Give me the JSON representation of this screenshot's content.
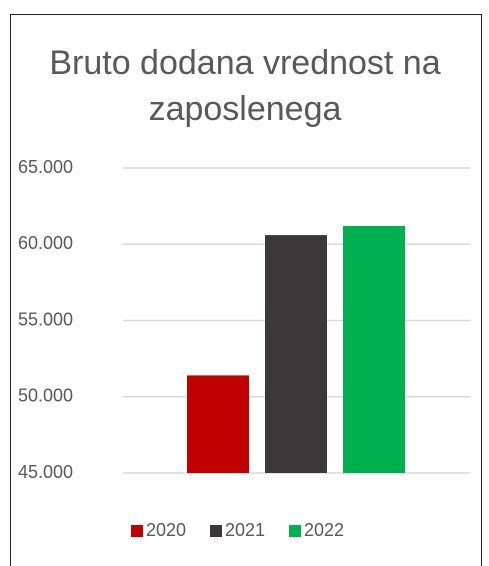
{
  "chart_data": {
    "type": "bar",
    "title": "Bruto dodana vrednost na zaposlenega",
    "series": [
      {
        "name": "2020",
        "color": "#c00000",
        "values": [
          51400
        ]
      },
      {
        "name": "2021",
        "color": "#3a3838",
        "values": [
          60600
        ]
      },
      {
        "name": "2022",
        "color": "#00b050",
        "values": [
          61200
        ]
      }
    ],
    "ylim": [
      45000,
      65000
    ],
    "yticks": [
      {
        "value": 45000,
        "label": "45.000"
      },
      {
        "value": 50000,
        "label": "50.000"
      },
      {
        "value": 55000,
        "label": "55.000"
      },
      {
        "value": 60000,
        "label": "60.000"
      },
      {
        "value": 65000,
        "label": "65.000"
      }
    ],
    "grid": true,
    "legend": "bottom"
  }
}
